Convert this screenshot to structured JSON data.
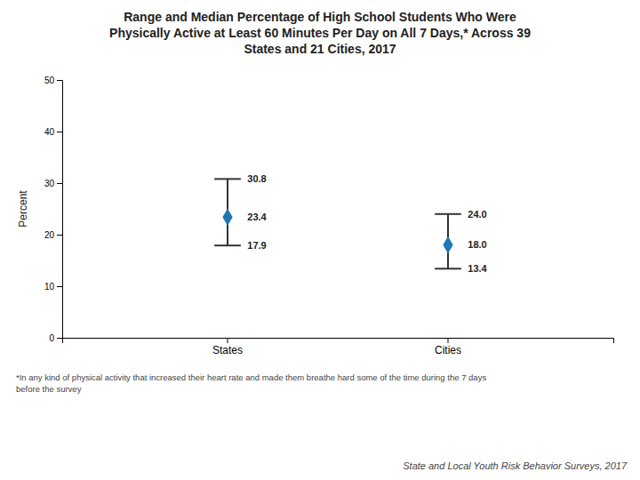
{
  "chart_data": {
    "type": "range",
    "title": "Range and Median Percentage of High School Students Who Were\nPhysically Active at Least 60 Minutes Per Day on All 7 Days,* Across 39\nStates and 21 Cities, 2017",
    "categories": [
      "States",
      "Cities"
    ],
    "values": [
      23.4,
      18.0
    ],
    "value_labels": [
      "23.4",
      "18.0"
    ],
    "low": [
      17.9,
      13.4
    ],
    "low_labels": [
      "17.9",
      "13.4"
    ],
    "high": [
      30.8,
      24.0
    ],
    "high_labels": [
      "30.8",
      "24.0"
    ],
    "ylabel": "Percent",
    "ylim": [
      0,
      50
    ],
    "yticks": [
      0,
      10,
      20,
      30,
      40,
      50
    ],
    "data_labels": true,
    "grid": false,
    "annotations": [
      "*In any kind of physical activity that increased their heart rate and made them breathe hard some of the time during the 7 days\nbefore the survey",
      "State and Local Youth Risk Behavior Surveys, 2017"
    ]
  }
}
